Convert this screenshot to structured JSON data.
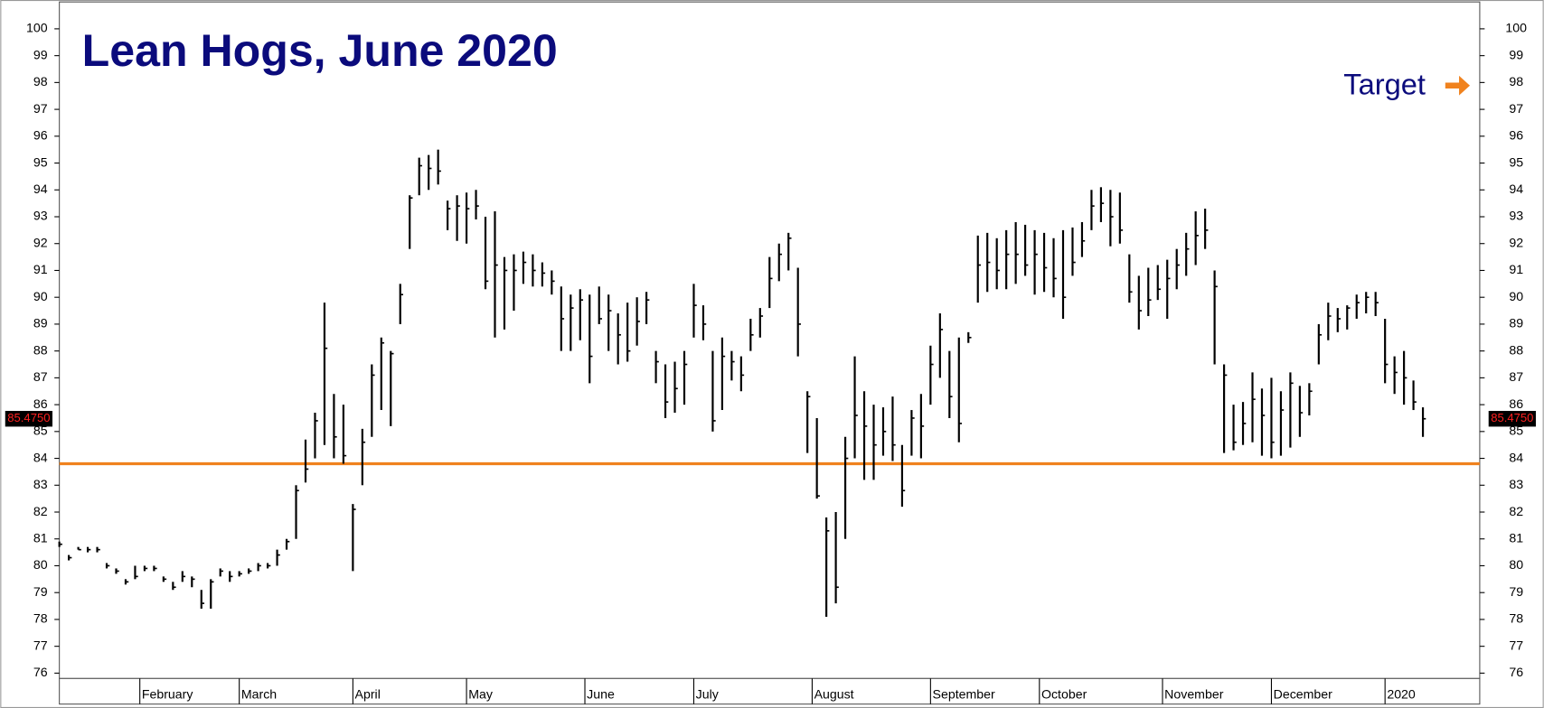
{
  "chart_data": {
    "type": "ohlc",
    "title": "Lean Hogs, June 2020",
    "color": "#000000",
    "x": [
      0,
      2,
      4,
      6,
      8,
      10,
      12,
      14,
      16,
      18,
      20,
      22,
      24,
      26,
      28,
      30,
      32,
      34,
      36,
      38,
      40,
      42,
      44,
      46,
      48,
      50,
      52,
      54,
      56,
      58,
      60,
      62,
      64,
      66,
      68,
      70,
      72,
      74,
      76,
      78,
      80,
      82,
      84,
      86,
      88,
      90,
      92,
      94,
      96,
      98,
      100,
      102,
      104,
      106,
      108,
      110,
      112,
      114,
      116,
      118,
      120,
      122,
      124,
      126,
      128,
      130,
      132,
      134,
      136,
      138,
      140,
      142,
      144,
      146,
      148,
      150,
      152,
      154,
      156,
      158,
      160,
      162,
      164,
      166,
      168,
      170,
      172,
      174,
      176,
      178,
      180,
      182,
      184,
      186,
      188,
      190,
      192,
      194,
      196,
      198,
      200,
      202,
      204,
      206,
      208,
      210,
      212,
      214,
      216,
      218,
      220,
      222,
      224,
      226,
      228,
      230,
      232,
      234,
      236,
      238,
      240,
      242,
      244,
      246,
      248,
      250,
      252,
      254,
      256,
      258,
      260,
      262,
      264,
      266,
      268,
      270,
      272,
      274,
      276,
      278,
      280,
      282,
      284,
      286,
      288
    ],
    "high": [
      80.9,
      80.4,
      80.7,
      80.7,
      80.7,
      80.1,
      79.9,
      79.5,
      80.0,
      80.0,
      80.0,
      79.6,
      79.4,
      79.8,
      79.6,
      79.1,
      79.5,
      79.9,
      79.8,
      79.8,
      79.9,
      80.1,
      80.1,
      80.6,
      81.0,
      83.0,
      84.7,
      85.7,
      89.8,
      86.4,
      86.0,
      82.3,
      85.1,
      87.5,
      88.5,
      88.0,
      90.5,
      93.8,
      95.2,
      95.3,
      95.5,
      93.6,
      93.8,
      93.9,
      94.0,
      93.0,
      93.2,
      91.5,
      91.6,
      91.7,
      91.6,
      91.3,
      91.0,
      90.4,
      90.1,
      90.3,
      90.1,
      90.4,
      90.1,
      89.4,
      89.8,
      90.0,
      90.2,
      88.0,
      87.5,
      87.6,
      88.0,
      90.5,
      89.7,
      88.0,
      88.5,
      88.0,
      87.8,
      89.2,
      89.6,
      91.5,
      92.0,
      92.4,
      91.1,
      86.5,
      85.5,
      81.8,
      82.0,
      84.8,
      87.8,
      86.5,
      86.0,
      85.9,
      86.3,
      84.5,
      85.8,
      86.4,
      88.2,
      89.4,
      88.0,
      88.5,
      88.7,
      92.3,
      92.4,
      92.2,
      92.5,
      92.8,
      92.7,
      92.5,
      92.4,
      92.2,
      92.5,
      92.6,
      92.8,
      94.0,
      94.1,
      94.0,
      93.9,
      91.6,
      90.8,
      91.1,
      91.2,
      91.4,
      91.8,
      92.4,
      93.2,
      93.3,
      91.0,
      87.5,
      86.0,
      86.1,
      87.2,
      86.6,
      87.0,
      86.5,
      87.2,
      86.7,
      86.8,
      89.0,
      89.8,
      89.6,
      89.7,
      90.1,
      90.2,
      90.2,
      89.2,
      87.8,
      88.0,
      86.9,
      85.9
    ],
    "low": [
      80.7,
      80.2,
      80.6,
      80.5,
      80.5,
      79.9,
      79.7,
      79.3,
      79.5,
      79.8,
      79.8,
      79.4,
      79.1,
      79.4,
      79.2,
      78.4,
      78.4,
      79.6,
      79.4,
      79.6,
      79.7,
      79.8,
      79.9,
      80.0,
      80.6,
      81.0,
      83.1,
      84.0,
      84.5,
      84.0,
      83.8,
      79.8,
      83.0,
      84.8,
      85.8,
      85.2,
      89.0,
      91.8,
      93.8,
      94.0,
      94.2,
      92.5,
      92.1,
      92.0,
      92.9,
      90.3,
      88.5,
      88.8,
      89.5,
      90.5,
      90.4,
      90.4,
      90.1,
      88.0,
      88.0,
      88.4,
      86.8,
      89.0,
      88.0,
      87.5,
      87.6,
      88.2,
      89.0,
      86.8,
      85.5,
      85.7,
      86.0,
      88.5,
      88.4,
      85.0,
      85.8,
      86.9,
      86.5,
      88.0,
      88.5,
      89.6,
      90.6,
      91.0,
      87.8,
      84.2,
      82.5,
      78.1,
      78.6,
      81.0,
      84.0,
      83.2,
      83.2,
      84.1,
      83.9,
      82.2,
      84.1,
      84.0,
      86.0,
      87.0,
      85.5,
      84.6,
      88.3,
      89.8,
      90.2,
      90.3,
      90.3,
      90.5,
      90.8,
      90.1,
      90.2,
      90.0,
      89.2,
      90.8,
      91.5,
      92.5,
      92.8,
      91.9,
      92.0,
      89.8,
      88.8,
      89.3,
      89.9,
      89.2,
      90.3,
      90.8,
      91.2,
      91.8,
      87.5,
      84.2,
      84.3,
      84.5,
      84.6,
      84.1,
      84.0,
      84.1,
      84.4,
      84.8,
      85.6,
      87.5,
      88.4,
      88.7,
      88.8,
      89.2,
      89.4,
      89.3,
      86.8,
      86.4,
      86.0,
      85.8,
      84.8
    ],
    "close": [
      80.8,
      80.3,
      80.6,
      80.6,
      80.6,
      80.0,
      79.8,
      79.4,
      79.6,
      79.9,
      79.9,
      79.5,
      79.2,
      79.6,
      79.5,
      78.6,
      79.4,
      79.8,
      79.6,
      79.7,
      79.8,
      80.0,
      80.0,
      80.4,
      80.9,
      82.8,
      83.6,
      85.4,
      88.1,
      84.8,
      84.1,
      82.1,
      84.6,
      87.1,
      88.3,
      87.9,
      90.1,
      93.7,
      94.9,
      94.8,
      94.7,
      93.3,
      93.4,
      93.3,
      93.4,
      90.6,
      91.2,
      91.0,
      91.0,
      91.3,
      91.0,
      90.9,
      90.6,
      89.2,
      89.6,
      89.9,
      87.8,
      89.2,
      89.5,
      88.6,
      88.0,
      89.1,
      89.9,
      87.6,
      86.1,
      86.6,
      87.5,
      89.7,
      89.0,
      85.4,
      87.8,
      87.6,
      87.1,
      88.6,
      89.3,
      90.7,
      91.6,
      92.2,
      89.0,
      86.3,
      82.6,
      81.3,
      79.2,
      84.0,
      85.6,
      85.2,
      84.5,
      85.0,
      84.5,
      82.8,
      85.5,
      85.2,
      87.5,
      88.8,
      86.3,
      85.3,
      88.5,
      91.2,
      91.3,
      91.0,
      91.6,
      91.6,
      91.2,
      91.6,
      91.1,
      90.7,
      90.0,
      91.3,
      92.1,
      93.4,
      93.5,
      93.0,
      92.5,
      90.2,
      89.5,
      89.9,
      90.3,
      90.7,
      91.2,
      91.8,
      92.3,
      92.5,
      90.4,
      87.1,
      84.6,
      85.3,
      86.2,
      85.6,
      84.6,
      85.8,
      86.8,
      85.7,
      86.5,
      88.6,
      89.3,
      89.2,
      89.6,
      89.8,
      90.0,
      89.8,
      87.5,
      87.2,
      87.0,
      86.1,
      85.475
    ],
    "xlim": [
      0,
      300
    ],
    "xticks": [
      {
        "value": 17,
        "label": "February"
      },
      {
        "value": 38,
        "label": "March"
      },
      {
        "value": 62,
        "label": "April"
      },
      {
        "value": 86,
        "label": "May"
      },
      {
        "value": 111,
        "label": "June"
      },
      {
        "value": 134,
        "label": "July"
      },
      {
        "value": 159,
        "label": "August"
      },
      {
        "value": 184,
        "label": "September"
      },
      {
        "value": 207,
        "label": "October"
      },
      {
        "value": 233,
        "label": "November"
      },
      {
        "value": 256,
        "label": "December"
      },
      {
        "value": 280,
        "label": "2020"
      }
    ],
    "ylim": [
      75.8,
      101
    ],
    "yticks": [
      76,
      77,
      78,
      79,
      80,
      81,
      82,
      83,
      84,
      85,
      86,
      87,
      88,
      89,
      90,
      91,
      92,
      93,
      94,
      95,
      96,
      97,
      98,
      99,
      100
    ],
    "last_price": {
      "value": 85.475,
      "label": "85.4750"
    },
    "target": {
      "label": "Target",
      "value": 83.8,
      "color": "#f0821e"
    }
  }
}
